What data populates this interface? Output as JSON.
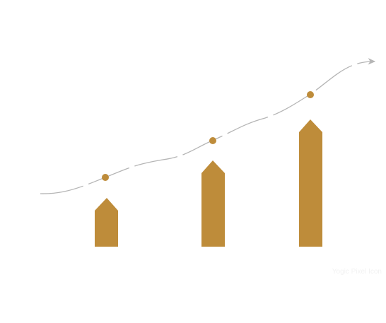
{
  "colors": {
    "accent": "#be8c3a",
    "trend_line": "#b5b5b5",
    "watermark": "#f2f2f2",
    "background": "#ffffff"
  },
  "illustration": {
    "subject": "growth arrows with upward trend line",
    "arrow_count": 3,
    "trend_point_count": 3
  },
  "watermark": {
    "text": "Yogic Pixel Icon"
  }
}
